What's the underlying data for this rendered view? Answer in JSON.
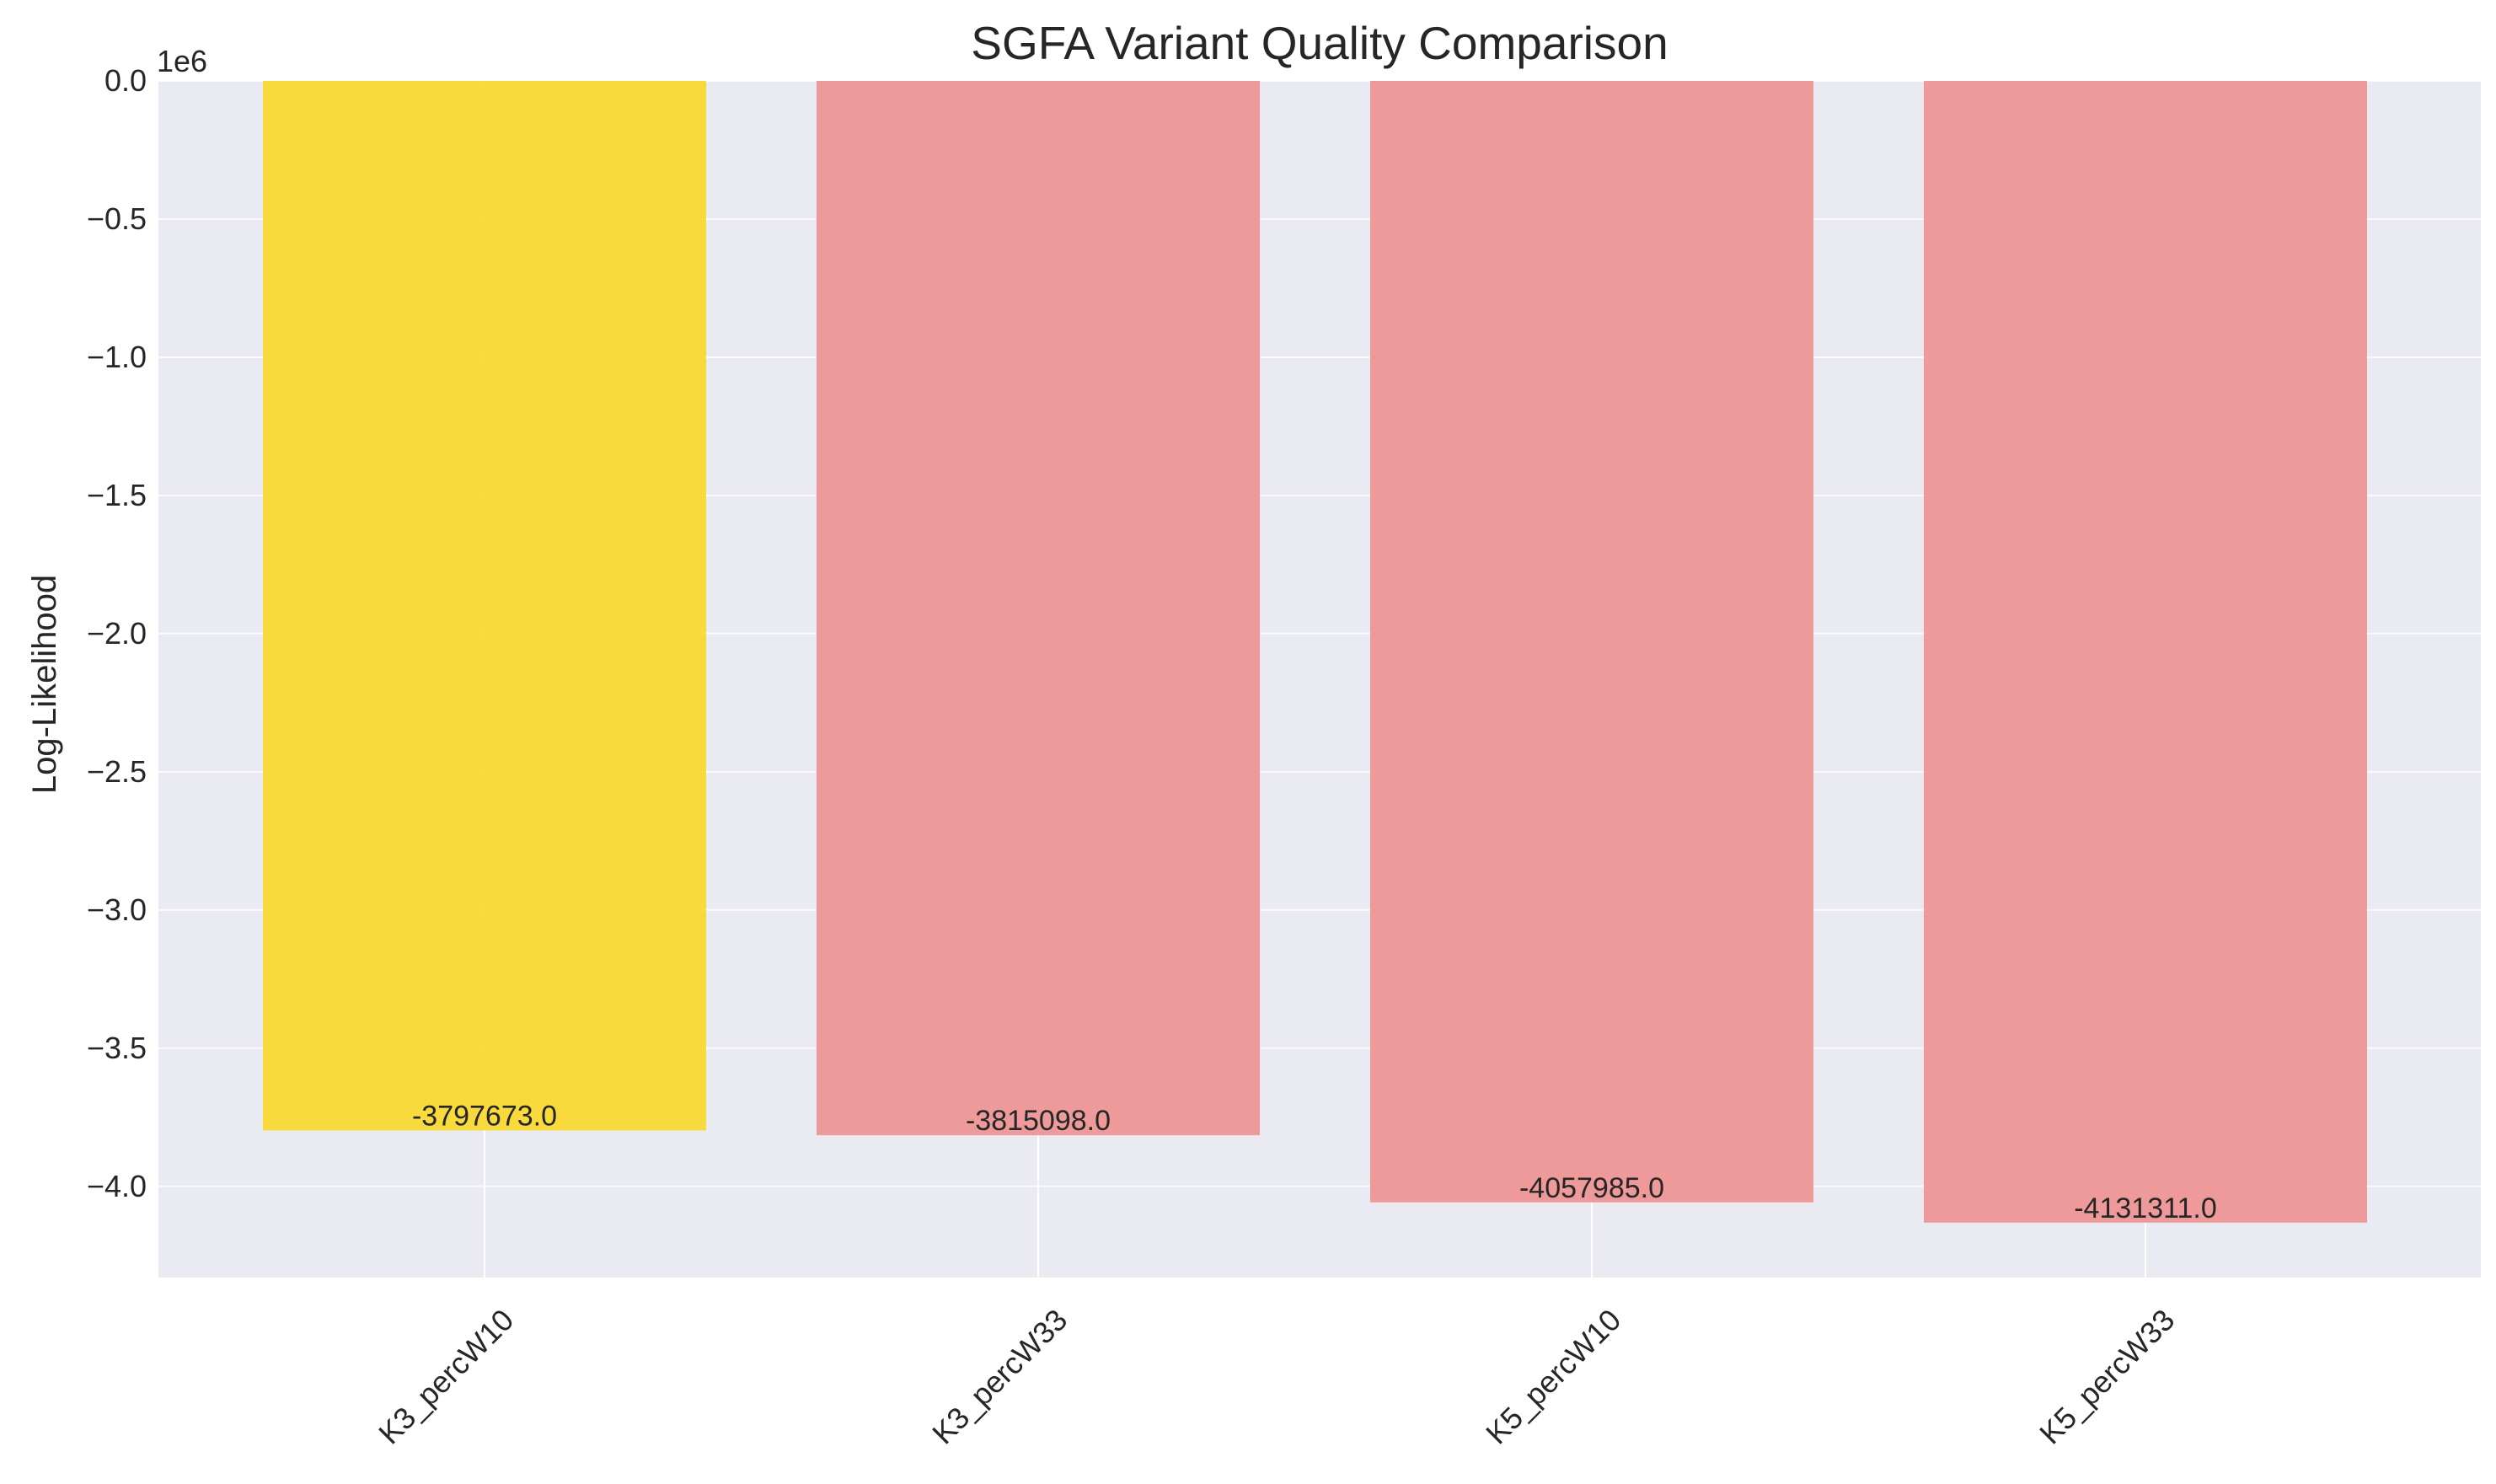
{
  "chart_data": {
    "type": "bar",
    "title": "SGFA Variant Quality Comparison",
    "xlabel": "",
    "ylabel": "Log-Likelihood",
    "scale_label": "1e6",
    "categories": [
      "K3_percW10",
      "K3_percW33",
      "K5_percW10",
      "K5_percW33"
    ],
    "values": [
      -3797673.0,
      -3815098.0,
      -4057985.0,
      -4131311.0
    ],
    "data_labels": [
      "-3797673.0",
      "-3815098.0",
      "-4057985.0",
      "-4131311.0"
    ],
    "bar_colors": [
      "#f9d932",
      "#ee9595",
      "#ee9595",
      "#ee9595"
    ],
    "ylim": [
      -4330000,
      0
    ],
    "yticks": [
      0,
      -500000,
      -1000000,
      -1500000,
      -2000000,
      -2500000,
      -3000000,
      -3500000,
      -4000000
    ],
    "ytick_labels": [
      "0.0",
      "−0.5",
      "−1.0",
      "−1.5",
      "−2.0",
      "−2.5",
      "−3.0",
      "−3.5",
      "−4.0"
    ],
    "grid": true,
    "background": "#eaeaf2",
    "grid_color": "#ffffff"
  }
}
